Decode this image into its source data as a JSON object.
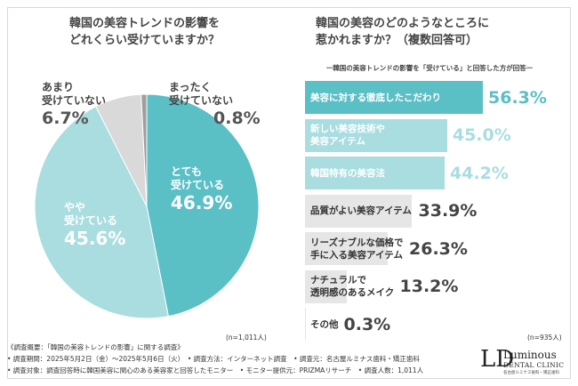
{
  "left": {
    "title_line1": "韓国の美容トレンドの影響を",
    "title_line2": "どれくらい受けていますか？",
    "n_label": "(n=1,011人)"
  },
  "right": {
    "title_line1": "韓国の美容のどのようなところに",
    "title_line2": "惹かれますか？（複数回答可）",
    "subtitle": "ー韓国の美容トレンドの影響を「受けている」と回答した方が回答ー",
    "n_label": "(n=935人)"
  },
  "chart_data": [
    {
      "type": "pie",
      "title": "韓国の美容トレンドの影響をどれくらい受けていますか？",
      "slices": [
        {
          "name_line1": "とても",
          "name_line2": "受けている",
          "value": 46.9,
          "label": "46.9%",
          "color": "#5bbfc6"
        },
        {
          "name_line1": "やや",
          "name_line2": "受けている",
          "value": 45.6,
          "label": "45.6%",
          "color": "#a9dde0"
        },
        {
          "name_line1": "あまり",
          "name_line2": "受けていない",
          "value": 6.7,
          "label": "6.7%",
          "color": "#d9d9d9"
        },
        {
          "name_line1": "まったく",
          "name_line2": "受けていない",
          "value": 0.8,
          "label": "0.8%",
          "color": "#9e9e9e"
        }
      ]
    },
    {
      "type": "bar",
      "orientation": "horizontal",
      "title": "韓国の美容のどのようなところに惹かれますか？（複数回答可）",
      "categories": [
        [
          "美容に対する徹底したこだわり"
        ],
        [
          "新しい美容技術や",
          "美容アイテム"
        ],
        [
          "韓国特有の美容法"
        ],
        [
          "品質がよい美容アイテム"
        ],
        [
          "リーズナブルな価格で",
          "手に入る美容アイテム"
        ],
        [
          "ナチュラルで",
          "透明感のあるメイク"
        ],
        [
          "その他"
        ]
      ],
      "values": [
        56.3,
        45.0,
        44.2,
        33.9,
        26.3,
        13.2,
        0.3
      ],
      "value_labels": [
        "56.3%",
        "45.0%",
        "44.2%",
        "33.9%",
        "26.3%",
        "13.2%",
        "0.3%"
      ],
      "colors": [
        "#5bbfc6",
        "#a9dde0",
        "#a9dde0",
        "#e6e6e6",
        "#e6e6e6",
        "#e6e6e6",
        "#e6e6e6"
      ],
      "value_colors": [
        "#5bbfc6",
        "#a9dde0",
        "#a9dde0",
        "#444444",
        "#444444",
        "#444444",
        "#444444"
      ],
      "label_colors": [
        "#ffffff",
        "#ffffff",
        "#ffffff",
        "#333333",
        "#333333",
        "#333333",
        "#333333"
      ]
    }
  ],
  "notes": [
    "《調査概要：「韓国の美容トレンドの影響」に関する調査》",
    "• 調査期間：2025年5月2日（金）〜2025年5月6日（火）　• 調査方法：インターネット調査　• 調査元：名古屋ルミナス歯科・矯正歯科",
    "• 調査対象：調査回答時に韓国美容に関心のある美容家と回答したモニター　• モニター提供元：PRIZMAリサーチ　• 調査人数：1,011人"
  ],
  "logo": {
    "mark": "LD",
    "name": "Luminous",
    "sub": "DENTAL CLINIC",
    "tiny": "名古屋ルミナス歯科・矯正歯科"
  }
}
